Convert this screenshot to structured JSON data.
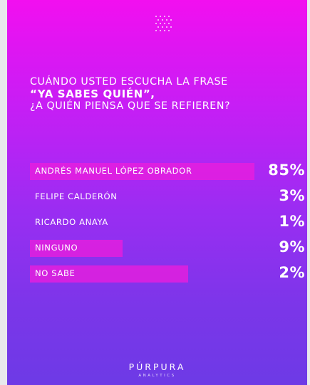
{
  "question": {
    "line1": "CUÁNDO USTED ESCUCHA LA FRASE",
    "line2": "“YA SABES QUIÉN”,",
    "line3": "¿A QUIÉN PIENSA QUE SE REFIEREN?"
  },
  "chart_data": {
    "type": "bar",
    "orientation": "horizontal",
    "categories": [
      "ANDRÉS MANUEL LÓPEZ OBRADOR",
      "FELIPE CALDERÓN",
      "RICARDO ANAYA",
      "NINGUNO",
      "NO SABE"
    ],
    "values": [
      85,
      3,
      1,
      9,
      2
    ],
    "value_labels": [
      "85%",
      "3%",
      "1%",
      "9%",
      "2%"
    ],
    "unit": "%",
    "bar_color": "#eb1edc"
  },
  "brand": {
    "name": "PÚRPURA",
    "tagline": "ANALYTICS"
  }
}
